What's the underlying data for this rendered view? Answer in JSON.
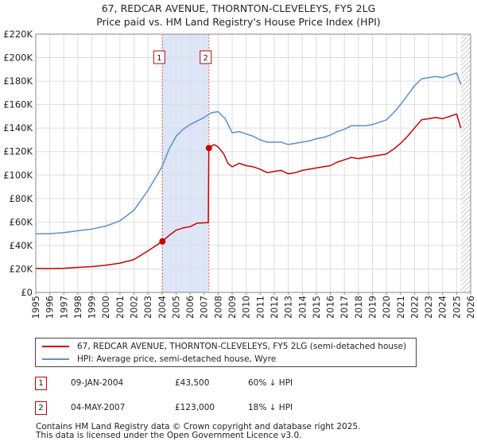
{
  "title_line1": "67, REDCAR AVENUE, THORNTON-CLEVELEYS, FY5 2LG",
  "title_line2": "Price paid vs. HM Land Registry's House Price Index (HPI)",
  "colors": {
    "property_line": "#cc0000",
    "hpi_line": "#5b8fd0",
    "shade": "#dde6f7",
    "vline": "#e06666",
    "grid": "#dddddd",
    "hatch": "#999999"
  },
  "chart_data": {
    "type": "line",
    "x_range": [
      1995,
      2026
    ],
    "ylim": [
      0,
      220000
    ],
    "y_ticks": [
      {
        "value": 0,
        "label": "£0"
      },
      {
        "value": 20000,
        "label": "£20K"
      },
      {
        "value": 40000,
        "label": "£40K"
      },
      {
        "value": 60000,
        "label": "£60K"
      },
      {
        "value": 80000,
        "label": "£80K"
      },
      {
        "value": 100000,
        "label": "£100K"
      },
      {
        "value": 120000,
        "label": "£120K"
      },
      {
        "value": 140000,
        "label": "£140K"
      },
      {
        "value": 160000,
        "label": "£160K"
      },
      {
        "value": 180000,
        "label": "£180K"
      },
      {
        "value": 200000,
        "label": "£200K"
      },
      {
        "value": 220000,
        "label": "£220K"
      }
    ],
    "x_ticks": [
      "1995",
      "1996",
      "1997",
      "1998",
      "1999",
      "2000",
      "2001",
      "2002",
      "2003",
      "2004",
      "2005",
      "2006",
      "2007",
      "2008",
      "2009",
      "2010",
      "2011",
      "2012",
      "2013",
      "2014",
      "2015",
      "2016",
      "2017",
      "2018",
      "2019",
      "2020",
      "2021",
      "2022",
      "2023",
      "2024",
      "2025",
      "2026"
    ],
    "shaded_period": [
      2004.03,
      2007.34
    ],
    "future_hatch_from": 2025.3,
    "series": [
      {
        "name": "67, REDCAR AVENUE, THORNTON-CLEVELEYS, FY5 2LG (semi-detached house)",
        "color": "#cc0000",
        "points": [
          [
            1995.0,
            20500
          ],
          [
            1996.0,
            20300
          ],
          [
            1997.0,
            20600
          ],
          [
            1998.0,
            21300
          ],
          [
            1999.0,
            22000
          ],
          [
            2000.0,
            23200
          ],
          [
            2001.0,
            25000
          ],
          [
            2002.0,
            28000
          ],
          [
            2003.0,
            35500
          ],
          [
            2004.03,
            43500
          ],
          [
            2004.5,
            48500
          ],
          [
            2005.0,
            53000
          ],
          [
            2005.5,
            55000
          ],
          [
            2006.0,
            56000
          ],
          [
            2006.5,
            59000
          ],
          [
            2007.3,
            59500
          ],
          [
            2007.34,
            123000
          ],
          [
            2007.7,
            126000
          ],
          [
            2008.0,
            124000
          ],
          [
            2008.4,
            118000
          ],
          [
            2008.7,
            110000
          ],
          [
            2009.0,
            107000
          ],
          [
            2009.5,
            110000
          ],
          [
            2010.0,
            108000
          ],
          [
            2010.5,
            107000
          ],
          [
            2011.0,
            105000
          ],
          [
            2011.5,
            102000
          ],
          [
            2012.0,
            103000
          ],
          [
            2012.5,
            104000
          ],
          [
            2013.0,
            101000
          ],
          [
            2013.5,
            102000
          ],
          [
            2014.0,
            104000
          ],
          [
            2014.5,
            105000
          ],
          [
            2015.0,
            106000
          ],
          [
            2015.5,
            107000
          ],
          [
            2016.0,
            108000
          ],
          [
            2016.5,
            111000
          ],
          [
            2017.0,
            113000
          ],
          [
            2017.5,
            115000
          ],
          [
            2018.0,
            114000
          ],
          [
            2018.5,
            115000
          ],
          [
            2019.0,
            116000
          ],
          [
            2019.5,
            117000
          ],
          [
            2020.0,
            118000
          ],
          [
            2020.5,
            122000
          ],
          [
            2021.0,
            127000
          ],
          [
            2021.5,
            133000
          ],
          [
            2022.0,
            140000
          ],
          [
            2022.5,
            147000
          ],
          [
            2023.0,
            148000
          ],
          [
            2023.5,
            149000
          ],
          [
            2024.0,
            148000
          ],
          [
            2024.5,
            150000
          ],
          [
            2025.0,
            152000
          ],
          [
            2025.3,
            140000
          ]
        ]
      },
      {
        "name": "HPI: Average price, semi-detached house, Wyre",
        "color": "#5b8fd0",
        "points": [
          [
            1995.0,
            50000
          ],
          [
            1996.0,
            50000
          ],
          [
            1997.0,
            51000
          ],
          [
            1998.0,
            52500
          ],
          [
            1999.0,
            54000
          ],
          [
            2000.0,
            56500
          ],
          [
            2001.0,
            61000
          ],
          [
            2002.0,
            70000
          ],
          [
            2003.0,
            87000
          ],
          [
            2004.0,
            107000
          ],
          [
            2004.5,
            122000
          ],
          [
            2005.0,
            133000
          ],
          [
            2005.5,
            139000
          ],
          [
            2006.0,
            143000
          ],
          [
            2006.5,
            146000
          ],
          [
            2007.0,
            149000
          ],
          [
            2007.5,
            153000
          ],
          [
            2008.0,
            154000
          ],
          [
            2008.5,
            148000
          ],
          [
            2009.0,
            136000
          ],
          [
            2009.5,
            137000
          ],
          [
            2010.0,
            135000
          ],
          [
            2010.5,
            133000
          ],
          [
            2011.0,
            130000
          ],
          [
            2011.5,
            128000
          ],
          [
            2012.0,
            128000
          ],
          [
            2012.5,
            128000
          ],
          [
            2013.0,
            126000
          ],
          [
            2013.5,
            127000
          ],
          [
            2014.0,
            128000
          ],
          [
            2014.5,
            129000
          ],
          [
            2015.0,
            131000
          ],
          [
            2015.5,
            132000
          ],
          [
            2016.0,
            134000
          ],
          [
            2016.5,
            137000
          ],
          [
            2017.0,
            139000
          ],
          [
            2017.5,
            142000
          ],
          [
            2018.0,
            142000
          ],
          [
            2018.5,
            142000
          ],
          [
            2019.0,
            143000
          ],
          [
            2019.5,
            145000
          ],
          [
            2020.0,
            147000
          ],
          [
            2020.5,
            153000
          ],
          [
            2021.0,
            160000
          ],
          [
            2021.5,
            168000
          ],
          [
            2022.0,
            176000
          ],
          [
            2022.5,
            182000
          ],
          [
            2023.0,
            183000
          ],
          [
            2023.5,
            184000
          ],
          [
            2024.0,
            183000
          ],
          [
            2024.5,
            185000
          ],
          [
            2025.0,
            187000
          ],
          [
            2025.3,
            177000
          ]
        ]
      }
    ],
    "sales": [
      {
        "label": "1",
        "x": 2004.03,
        "price": 43500
      },
      {
        "label": "2",
        "x": 2007.34,
        "price": 123000
      }
    ]
  },
  "legend": {
    "property": "67, REDCAR AVENUE, THORNTON-CLEVELEYS, FY5 2LG (semi-detached house)",
    "hpi": "HPI: Average price, semi-detached house, Wyre"
  },
  "transactions": [
    {
      "num": "1",
      "date": "09-JAN-2004",
      "price": "£43,500",
      "delta": "60% ↓ HPI"
    },
    {
      "num": "2",
      "date": "04-MAY-2007",
      "price": "£123,000",
      "delta": "18% ↓ HPI"
    }
  ],
  "footer": {
    "line1": "Contains HM Land Registry data © Crown copyright and database right 2025.",
    "line2": "This data is licensed under the Open Government Licence v3.0."
  }
}
